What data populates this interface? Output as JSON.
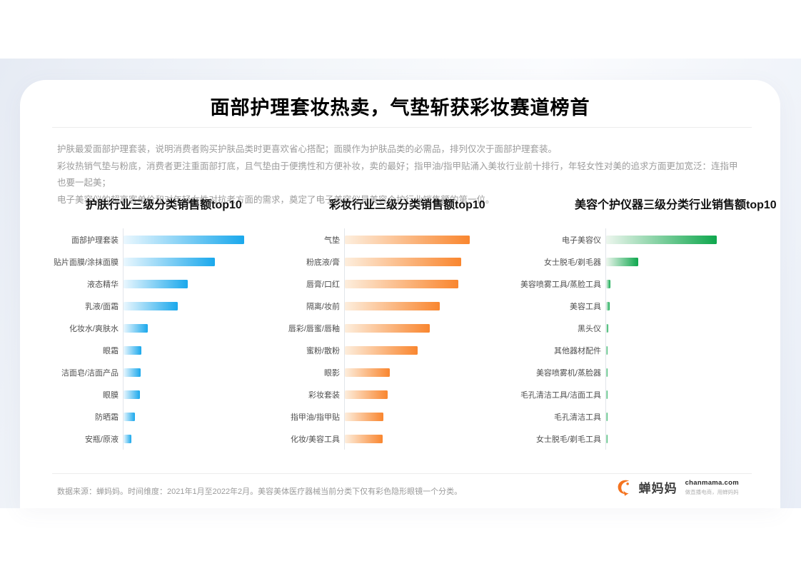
{
  "page": {
    "title": "面部护理套妆热卖，气垫斩获彩妆赛道榜首",
    "description_lines": [
      "护肤最爱面部护理套装，说明消费者购买护肤品类时更喜欢省心搭配；面膜作为护肤品类的必需品，排列仅次于面部护理套装。",
      "彩妆热销气垫与粉底，消费者更注重面部打底，且气垫由于便携性和方便补妆，卖的最好；指甲油/指甲贴涌入美妆行业前十排行，年轻女性对美的追求方面更加宽泛：连指甲也要一起美；",
      "电子美容仪的超高客单价和对年轻女性对抗老方面的需求，奠定了电子美容仪是美容个护行业销售额的第一位。"
    ],
    "footer_note": "数据来源：蝉妈妈。时间维度：2021年1月至2022年2月。美容美体医疗器械当前分类下仅有彩色隐形眼镜一个分类。",
    "brand": {
      "name": "蝉妈妈",
      "domain": "chanmama.com",
      "tagline": "做直播电商，用蝉妈妈",
      "logo_color": "#f4731f"
    }
  },
  "chart_data": [
    {
      "type": "bar",
      "orientation": "horizontal",
      "title": "护肤行业三级分类销售额top10",
      "categories": [
        "面部护理套装",
        "贴片面膜/涂抹面膜",
        "液态精华",
        "乳液/面霜",
        "化妆水/爽肤水",
        "眼霜",
        "洁面皂/洁面产品",
        "眼膜",
        "防晒霜",
        "安瓶/原液"
      ],
      "values": [
        100,
        76,
        53,
        45,
        20,
        15,
        14,
        13.5,
        9.5,
        6.5
      ],
      "unit": "relative sales (longest bar = 100); value axis not labeled in source",
      "xlim": [
        0,
        100
      ],
      "grid": false,
      "legend": false,
      "bar_gradient": [
        "#eaf7fe",
        "#1aa8ec"
      ]
    },
    {
      "type": "bar",
      "orientation": "horizontal",
      "title": "彩妆行业三级分类销售额top10",
      "categories": [
        "气垫",
        "粉底液/膏",
        "唇膏/口红",
        "隔离/妆前",
        "唇彩/唇蜜/唇釉",
        "蜜粉/散粉",
        "眼影",
        "彩妆套装",
        "指甲油/指甲贴",
        "化妆/美容工具"
      ],
      "values": [
        100,
        93,
        91,
        76,
        68,
        58,
        36,
        34,
        31,
        30
      ],
      "unit": "relative sales (longest bar = 100); value axis not labeled in source",
      "xlim": [
        0,
        100
      ],
      "grid": false,
      "legend": false,
      "bar_gradient": [
        "#fdeedd",
        "#f9862f"
      ]
    },
    {
      "type": "bar",
      "orientation": "horizontal",
      "title": "美容个护仪器三级分类行业销售额top10",
      "categories": [
        "电子美容仪",
        "女士脱毛/剃毛器",
        "美容喷雾工具/蒸脸工具",
        "美容工具",
        "黑头仪",
        "其他器材配件",
        "美容喷雾机/蒸脸器",
        "毛孔清洁工具/洁面工具",
        "毛孔清洁工具",
        "女士脱毛/剃毛工具"
      ],
      "values": [
        100,
        29,
        4,
        3,
        2,
        1.5,
        1.5,
        1.5,
        1,
        1
      ],
      "unit": "relative sales (longest bar = 100); value axis not labeled in source",
      "xlim": [
        0,
        100
      ],
      "grid": false,
      "legend": false,
      "bar_gradient": [
        "#edf6ee",
        "#0ea74d"
      ]
    }
  ]
}
